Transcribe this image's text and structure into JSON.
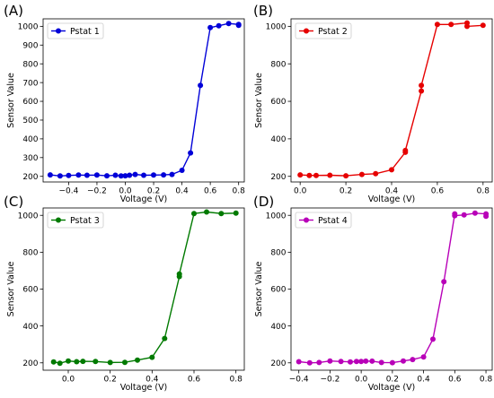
{
  "chart_data": [
    {
      "type": "line",
      "panel_label": "(A)",
      "xlabel": "Voltage (V)",
      "ylabel": "Sensor Value",
      "xlim": [
        -0.58,
        0.84
      ],
      "ylim": [
        170,
        1040
      ],
      "xticks": [
        -0.4,
        -0.2,
        0.0,
        0.2,
        0.4,
        0.6,
        0.8
      ],
      "xtick_labels": [
        "−0.4",
        "−0.2",
        "0.0",
        "0.2",
        "0.4",
        "0.6",
        "0.8"
      ],
      "yticks": [
        200,
        300,
        400,
        500,
        600,
        700,
        800,
        900,
        1000
      ],
      "ytick_labels": [
        "200",
        "300",
        "400",
        "500",
        "600",
        "700",
        "800",
        "900",
        "1000"
      ],
      "grid": false,
      "legend_position": "top-left",
      "series": [
        {
          "name": "Pstat 1",
          "color": "#0000d8",
          "x": [
            -0.53,
            -0.46,
            -0.4,
            -0.33,
            -0.27,
            -0.2,
            -0.13,
            -0.07,
            -0.03,
            0.0,
            0.03,
            0.07,
            0.13,
            0.2,
            0.27,
            0.33,
            0.4,
            0.46,
            0.53,
            0.6,
            0.66,
            0.73,
            0.8,
            0.8
          ],
          "y": [
            208,
            202,
            205,
            207,
            206,
            207,
            203,
            206,
            202,
            203,
            206,
            210,
            206,
            207,
            208,
            210,
            232,
            325,
            685,
            993,
            1003,
            1015,
            1010,
            1005
          ]
        }
      ]
    },
    {
      "type": "line",
      "panel_label": "(B)",
      "xlabel": "Voltage (V)",
      "ylabel": "Sensor Value",
      "xlim": [
        -0.04,
        0.84
      ],
      "ylim": [
        170,
        1040
      ],
      "xticks": [
        0.0,
        0.2,
        0.4,
        0.6,
        0.8
      ],
      "xtick_labels": [
        "0.0",
        "0.2",
        "0.4",
        "0.6",
        "0.8"
      ],
      "yticks": [
        200,
        400,
        600,
        800,
        1000
      ],
      "ytick_labels": [
        "200",
        "400",
        "600",
        "800",
        "1000"
      ],
      "grid": false,
      "legend_position": "top-left",
      "series": [
        {
          "name": "Pstat 2",
          "color": "#e60000",
          "x": [
            0.0,
            0.04,
            0.07,
            0.13,
            0.2,
            0.27,
            0.33,
            0.4,
            0.46,
            0.46,
            0.53,
            0.53,
            0.6,
            0.66,
            0.73,
            0.73,
            0.8
          ],
          "y": [
            208,
            205,
            205,
            206,
            203,
            210,
            214,
            235,
            328,
            338,
            655,
            685,
            1010,
            1010,
            1018,
            1000,
            1005
          ]
        }
      ]
    },
    {
      "type": "line",
      "panel_label": "(C)",
      "xlabel": "Voltage (V)",
      "ylabel": "Sensor Value",
      "xlim": [
        -0.12,
        0.84
      ],
      "ylim": [
        160,
        1040
      ],
      "xticks": [
        0.0,
        0.2,
        0.4,
        0.6,
        0.8
      ],
      "xtick_labels": [
        "0.0",
        "0.2",
        "0.4",
        "0.6",
        "0.8"
      ],
      "yticks": [
        200,
        400,
        600,
        800,
        1000
      ],
      "ytick_labels": [
        "200",
        "400",
        "600",
        "800",
        "1000"
      ],
      "grid": false,
      "legend_position": "top-left",
      "series": [
        {
          "name": "Pstat 3",
          "color": "#007a00",
          "x": [
            -0.07,
            -0.04,
            0.0,
            0.04,
            0.07,
            0.13,
            0.2,
            0.27,
            0.33,
            0.4,
            0.46,
            0.53,
            0.53,
            0.6,
            0.66,
            0.73,
            0.8
          ],
          "y": [
            205,
            198,
            210,
            206,
            208,
            207,
            202,
            203,
            215,
            230,
            332,
            668,
            682,
            1010,
            1018,
            1010,
            1012
          ]
        }
      ]
    },
    {
      "type": "line",
      "panel_label": "(D)",
      "xlabel": "Voltage (V)",
      "ylabel": "Sensor Value",
      "xlim": [
        -0.45,
        0.84
      ],
      "ylim": [
        160,
        1040
      ],
      "xticks": [
        -0.4,
        -0.2,
        0.0,
        0.2,
        0.4,
        0.6,
        0.8
      ],
      "xtick_labels": [
        "−0.4",
        "−0.2",
        "0.0",
        "0.2",
        "0.4",
        "0.6",
        "0.8"
      ],
      "yticks": [
        200,
        400,
        600,
        800,
        1000
      ],
      "ytick_labels": [
        "200",
        "400",
        "600",
        "800",
        "1000"
      ],
      "grid": false,
      "legend_position": "top-left",
      "series": [
        {
          "name": "Pstat 4",
          "color": "#b800b8",
          "x": [
            -0.4,
            -0.33,
            -0.27,
            -0.2,
            -0.13,
            -0.07,
            -0.03,
            0.0,
            0.03,
            0.07,
            0.13,
            0.2,
            0.27,
            0.33,
            0.4,
            0.46,
            0.53,
            0.6,
            0.6,
            0.66,
            0.73,
            0.8,
            0.8
          ],
          "y": [
            206,
            200,
            202,
            210,
            207,
            205,
            207,
            207,
            209,
            209,
            202,
            201,
            210,
            218,
            232,
            328,
            640,
            1008,
            998,
            1002,
            1012,
            1008,
            995
          ]
        }
      ]
    }
  ]
}
